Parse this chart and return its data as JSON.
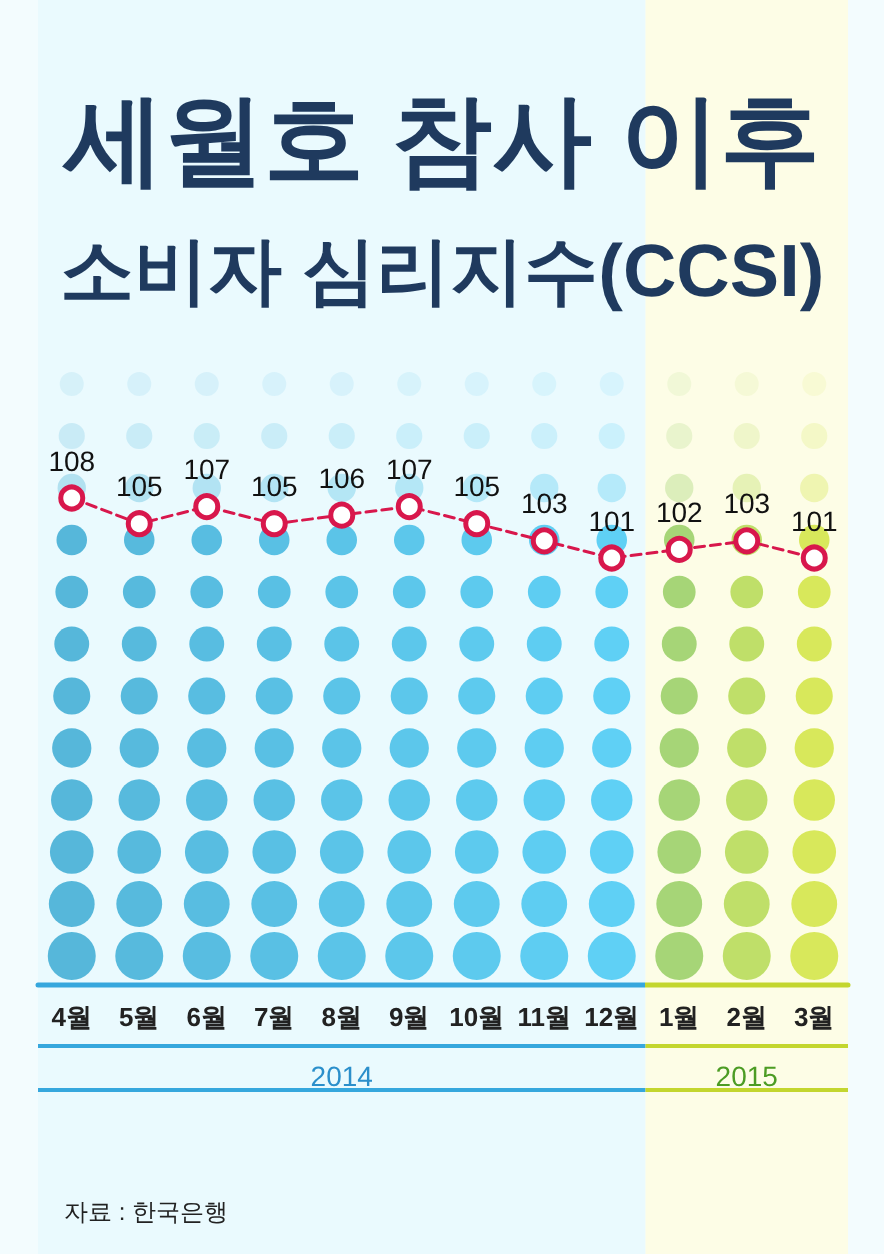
{
  "chart_data": {
    "type": "line",
    "title": "세월호 참사 이후",
    "subtitle": "소비자 심리지수(CCSI)",
    "categories": [
      "4월",
      "5월",
      "6월",
      "7월",
      "8월",
      "9월",
      "10월",
      "11월",
      "12월",
      "1월",
      "2월",
      "3월"
    ],
    "values": [
      108,
      105,
      107,
      105,
      106,
      107,
      105,
      103,
      101,
      102,
      103,
      101
    ],
    "color": "#d8174c",
    "data_labels": true,
    "marker": "circle",
    "line_style": "dashed",
    "tick_labels": "x",
    "bands": [
      {
        "axis": "x",
        "from": "4월",
        "to": "12월",
        "label": "2014",
        "color": "#eafafe"
      },
      {
        "axis": "x",
        "from": "1월",
        "to": "3월",
        "label": "2015",
        "color": "#fdfde6"
      }
    ],
    "annotations": [
      "자료 : 한국은행"
    ]
  }
}
